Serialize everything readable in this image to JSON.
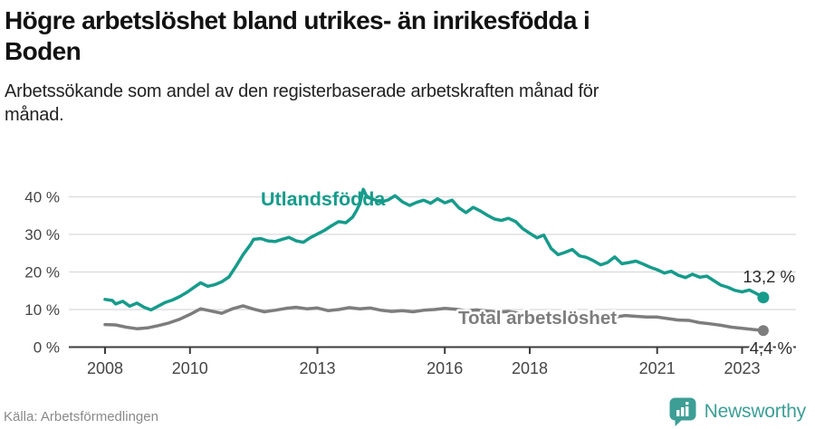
{
  "header": {
    "title_line1": "Högre arbetslöshet bland utrikes- än inrikesfödda i",
    "title_line2": "Boden",
    "subtitle_line1": "Arbetssökande som andel av den registerbaserade arbetskraften månad för",
    "subtitle_line2": "månad."
  },
  "colors": {
    "accent_teal": "#169b8b",
    "series_gray": "#7d7d7d",
    "logo_teal": "#3d9e96",
    "grid": "#dadada",
    "axis": "#3c3c3c",
    "end_label_text": "#2a2a2a"
  },
  "chart_data": {
    "type": "line",
    "title": "",
    "xlabel": "",
    "ylabel": "",
    "ylim": [
      0,
      42
    ],
    "xlim": [
      2008,
      2023.6
    ],
    "grid": "horizontal",
    "legend": "inline-labels",
    "y_ticks": [
      0,
      10,
      20,
      30,
      40
    ],
    "y_tick_labels": [
      "0 %",
      "10 %",
      "20 %",
      "30 %",
      "40 %"
    ],
    "x_ticks": [
      2008,
      2010,
      2013,
      2016,
      2018,
      2021,
      2023
    ],
    "x_tick_labels": [
      "2008",
      "2010",
      "2013",
      "2016",
      "2018",
      "2021",
      "2023"
    ],
    "series": [
      {
        "name": "Utlandsfödda",
        "color": "#169b8b",
        "end_label": "13,2 %",
        "end_value": 13.2,
        "points": [
          [
            2008.0,
            12.7
          ],
          [
            2008.17,
            12.4
          ],
          [
            2008.25,
            11.5
          ],
          [
            2008.42,
            12.2
          ],
          [
            2008.58,
            10.9
          ],
          [
            2008.75,
            11.7
          ],
          [
            2008.92,
            10.6
          ],
          [
            2009.08,
            9.9
          ],
          [
            2009.25,
            10.9
          ],
          [
            2009.42,
            11.9
          ],
          [
            2009.58,
            12.5
          ],
          [
            2009.75,
            13.4
          ],
          [
            2009.92,
            14.5
          ],
          [
            2010.08,
            15.8
          ],
          [
            2010.25,
            17.1
          ],
          [
            2010.42,
            16.2
          ],
          [
            2010.58,
            16.6
          ],
          [
            2010.75,
            17.4
          ],
          [
            2010.92,
            18.7
          ],
          [
            2011.08,
            21.5
          ],
          [
            2011.25,
            24.6
          ],
          [
            2011.42,
            27.2
          ],
          [
            2011.5,
            28.7
          ],
          [
            2011.67,
            28.9
          ],
          [
            2011.83,
            28.3
          ],
          [
            2012.0,
            28.1
          ],
          [
            2012.17,
            28.7
          ],
          [
            2012.33,
            29.2
          ],
          [
            2012.5,
            28.3
          ],
          [
            2012.67,
            27.9
          ],
          [
            2012.83,
            29.1
          ],
          [
            2013.0,
            30.1
          ],
          [
            2013.17,
            31.1
          ],
          [
            2013.33,
            32.3
          ],
          [
            2013.5,
            33.4
          ],
          [
            2013.67,
            33.1
          ],
          [
            2013.83,
            34.6
          ],
          [
            2013.92,
            36.3
          ],
          [
            2014.0,
            38.2
          ],
          [
            2014.08,
            42.0
          ],
          [
            2014.17,
            39.9
          ],
          [
            2014.33,
            39.3
          ],
          [
            2014.5,
            38.6
          ],
          [
            2014.67,
            39.2
          ],
          [
            2014.83,
            40.3
          ],
          [
            2015.0,
            38.7
          ],
          [
            2015.17,
            37.7
          ],
          [
            2015.33,
            38.5
          ],
          [
            2015.5,
            39.1
          ],
          [
            2015.67,
            38.3
          ],
          [
            2015.83,
            39.5
          ],
          [
            2016.0,
            38.4
          ],
          [
            2016.17,
            39.1
          ],
          [
            2016.33,
            37.1
          ],
          [
            2016.5,
            35.8
          ],
          [
            2016.67,
            37.2
          ],
          [
            2016.83,
            36.3
          ],
          [
            2017.0,
            35.1
          ],
          [
            2017.17,
            34.1
          ],
          [
            2017.33,
            33.7
          ],
          [
            2017.5,
            34.3
          ],
          [
            2017.67,
            33.4
          ],
          [
            2017.83,
            31.6
          ],
          [
            2018.0,
            30.3
          ],
          [
            2018.17,
            29.1
          ],
          [
            2018.33,
            29.8
          ],
          [
            2018.5,
            26.3
          ],
          [
            2018.67,
            24.6
          ],
          [
            2018.83,
            25.2
          ],
          [
            2019.0,
            26.0
          ],
          [
            2019.17,
            24.3
          ],
          [
            2019.33,
            23.9
          ],
          [
            2019.5,
            23.0
          ],
          [
            2019.67,
            21.9
          ],
          [
            2019.83,
            22.5
          ],
          [
            2020.0,
            24.0
          ],
          [
            2020.17,
            22.2
          ],
          [
            2020.33,
            22.5
          ],
          [
            2020.5,
            22.9
          ],
          [
            2020.67,
            22.1
          ],
          [
            2020.83,
            21.3
          ],
          [
            2021.0,
            20.6
          ],
          [
            2021.17,
            19.7
          ],
          [
            2021.33,
            20.2
          ],
          [
            2021.5,
            19.1
          ],
          [
            2021.67,
            18.5
          ],
          [
            2021.83,
            19.4
          ],
          [
            2022.0,
            18.6
          ],
          [
            2022.17,
            18.9
          ],
          [
            2022.33,
            17.7
          ],
          [
            2022.5,
            16.5
          ],
          [
            2022.67,
            15.9
          ],
          [
            2022.83,
            15.1
          ],
          [
            2023.0,
            14.7
          ],
          [
            2023.17,
            15.2
          ],
          [
            2023.33,
            14.3
          ],
          [
            2023.5,
            13.2
          ]
        ]
      },
      {
        "name": "Total arbetslöshet",
        "color": "#7d7d7d",
        "end_label": "4,4 %",
        "end_value": 4.4,
        "points": [
          [
            2008.0,
            6.0
          ],
          [
            2008.25,
            5.9
          ],
          [
            2008.5,
            5.3
          ],
          [
            2008.75,
            4.9
          ],
          [
            2009.0,
            5.1
          ],
          [
            2009.25,
            5.7
          ],
          [
            2009.5,
            6.4
          ],
          [
            2009.75,
            7.4
          ],
          [
            2010.0,
            8.7
          ],
          [
            2010.25,
            10.2
          ],
          [
            2010.5,
            9.6
          ],
          [
            2010.75,
            9.0
          ],
          [
            2011.0,
            10.2
          ],
          [
            2011.25,
            11.0
          ],
          [
            2011.5,
            10.1
          ],
          [
            2011.75,
            9.4
          ],
          [
            2012.0,
            9.8
          ],
          [
            2012.25,
            10.3
          ],
          [
            2012.5,
            10.6
          ],
          [
            2012.75,
            10.2
          ],
          [
            2013.0,
            10.4
          ],
          [
            2013.25,
            9.7
          ],
          [
            2013.5,
            10.0
          ],
          [
            2013.75,
            10.5
          ],
          [
            2014.0,
            10.2
          ],
          [
            2014.25,
            10.4
          ],
          [
            2014.5,
            9.8
          ],
          [
            2014.75,
            9.5
          ],
          [
            2015.0,
            9.7
          ],
          [
            2015.25,
            9.4
          ],
          [
            2015.5,
            9.8
          ],
          [
            2015.75,
            10.0
          ],
          [
            2016.0,
            10.3
          ],
          [
            2016.25,
            10.1
          ],
          [
            2016.5,
            9.7
          ],
          [
            2016.75,
            9.9
          ],
          [
            2017.0,
            9.6
          ],
          [
            2017.25,
            9.3
          ],
          [
            2017.5,
            9.5
          ],
          [
            2017.75,
            9.0
          ],
          [
            2018.0,
            8.6
          ],
          [
            2018.25,
            8.3
          ],
          [
            2018.5,
            8.0
          ],
          [
            2018.75,
            8.2
          ],
          [
            2019.0,
            7.9
          ],
          [
            2019.25,
            7.7
          ],
          [
            2019.5,
            7.5
          ],
          [
            2019.75,
            7.8
          ],
          [
            2020.0,
            8.0
          ],
          [
            2020.25,
            8.4
          ],
          [
            2020.5,
            8.2
          ],
          [
            2020.75,
            8.0
          ],
          [
            2021.0,
            8.0
          ],
          [
            2021.25,
            7.6
          ],
          [
            2021.5,
            7.2
          ],
          [
            2021.75,
            7.1
          ],
          [
            2022.0,
            6.5
          ],
          [
            2022.25,
            6.2
          ],
          [
            2022.5,
            5.8
          ],
          [
            2022.75,
            5.3
          ],
          [
            2023.0,
            5.0
          ],
          [
            2023.25,
            4.7
          ],
          [
            2023.5,
            4.4
          ]
        ]
      }
    ]
  },
  "footer": {
    "source": "Källa: Arbetsförmedlingen",
    "brand": "Newsworthy"
  }
}
